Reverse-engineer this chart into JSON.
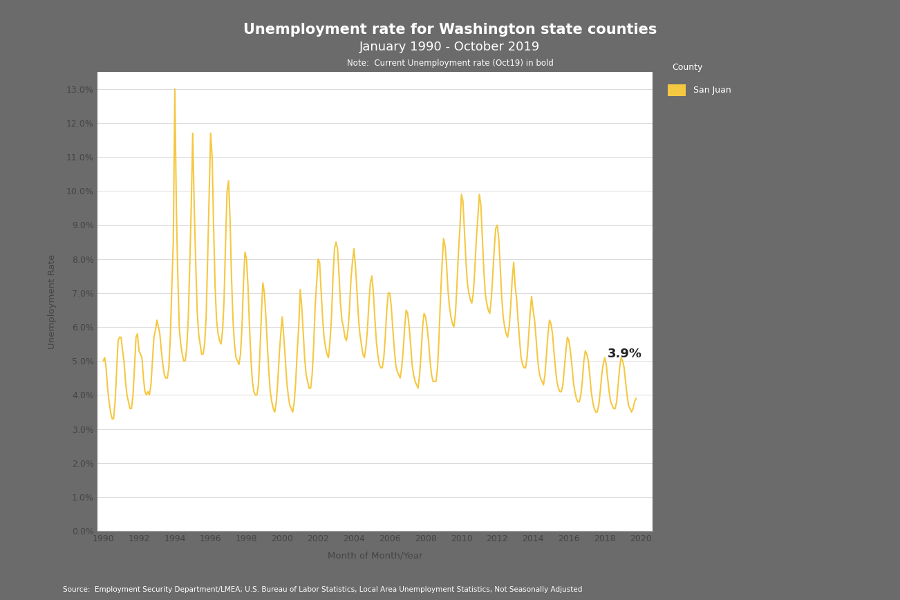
{
  "title_line1": "Unemployment rate for Washington state counties",
  "title_line2": "January 1990 - October 2019",
  "note": "Note:  Current Unemployment rate (Oct19) in bold",
  "xlabel": "Month of Month/Year",
  "ylabel": "Unemployment Rate",
  "source": "Source:  Employment Security Department/LMEA; U.S. Bureau of Labor Statistics, Local Area Unemployment Statistics, Not Seasonally Adjusted",
  "legend_title": "County",
  "legend_label": "San Juan",
  "line_color": "#F5C842",
  "background_outer": "#6b6b6b",
  "background_plot": "#ffffff",
  "annotation_text": "3.9%",
  "data": [
    [
      1990,
      1,
      0.05
    ],
    [
      1990,
      2,
      0.051
    ],
    [
      1990,
      3,
      0.048
    ],
    [
      1990,
      4,
      0.042
    ],
    [
      1990,
      5,
      0.038
    ],
    [
      1990,
      6,
      0.035
    ],
    [
      1990,
      7,
      0.033
    ],
    [
      1990,
      8,
      0.033
    ],
    [
      1990,
      9,
      0.038
    ],
    [
      1990,
      10,
      0.047
    ],
    [
      1990,
      11,
      0.056
    ],
    [
      1990,
      12,
      0.057
    ],
    [
      1991,
      1,
      0.057
    ],
    [
      1991,
      2,
      0.053
    ],
    [
      1991,
      3,
      0.05
    ],
    [
      1991,
      4,
      0.044
    ],
    [
      1991,
      5,
      0.04
    ],
    [
      1991,
      6,
      0.038
    ],
    [
      1991,
      7,
      0.036
    ],
    [
      1991,
      8,
      0.036
    ],
    [
      1991,
      9,
      0.04
    ],
    [
      1991,
      10,
      0.048
    ],
    [
      1991,
      11,
      0.057
    ],
    [
      1991,
      12,
      0.058
    ],
    [
      1992,
      1,
      0.053
    ],
    [
      1992,
      2,
      0.052
    ],
    [
      1992,
      3,
      0.051
    ],
    [
      1992,
      4,
      0.045
    ],
    [
      1992,
      5,
      0.041
    ],
    [
      1992,
      6,
      0.04
    ],
    [
      1992,
      7,
      0.041
    ],
    [
      1992,
      8,
      0.04
    ],
    [
      1992,
      9,
      0.043
    ],
    [
      1992,
      10,
      0.05
    ],
    [
      1992,
      11,
      0.057
    ],
    [
      1992,
      12,
      0.059
    ],
    [
      1993,
      1,
      0.062
    ],
    [
      1993,
      2,
      0.06
    ],
    [
      1993,
      3,
      0.058
    ],
    [
      1993,
      4,
      0.053
    ],
    [
      1993,
      5,
      0.049
    ],
    [
      1993,
      6,
      0.046
    ],
    [
      1993,
      7,
      0.045
    ],
    [
      1993,
      8,
      0.045
    ],
    [
      1993,
      9,
      0.048
    ],
    [
      1993,
      10,
      0.057
    ],
    [
      1993,
      11,
      0.072
    ],
    [
      1993,
      12,
      0.085
    ],
    [
      1994,
      1,
      0.13
    ],
    [
      1994,
      2,
      0.095
    ],
    [
      1994,
      3,
      0.076
    ],
    [
      1994,
      4,
      0.06
    ],
    [
      1994,
      5,
      0.055
    ],
    [
      1994,
      6,
      0.052
    ],
    [
      1994,
      7,
      0.05
    ],
    [
      1994,
      8,
      0.05
    ],
    [
      1994,
      9,
      0.054
    ],
    [
      1994,
      10,
      0.062
    ],
    [
      1994,
      11,
      0.078
    ],
    [
      1994,
      12,
      0.095
    ],
    [
      1995,
      1,
      0.117
    ],
    [
      1995,
      2,
      0.095
    ],
    [
      1995,
      3,
      0.08
    ],
    [
      1995,
      4,
      0.065
    ],
    [
      1995,
      5,
      0.058
    ],
    [
      1995,
      6,
      0.055
    ],
    [
      1995,
      7,
      0.052
    ],
    [
      1995,
      8,
      0.052
    ],
    [
      1995,
      9,
      0.055
    ],
    [
      1995,
      10,
      0.063
    ],
    [
      1995,
      11,
      0.08
    ],
    [
      1995,
      12,
      0.098
    ],
    [
      1996,
      1,
      0.117
    ],
    [
      1996,
      2,
      0.11
    ],
    [
      1996,
      3,
      0.09
    ],
    [
      1996,
      4,
      0.072
    ],
    [
      1996,
      5,
      0.062
    ],
    [
      1996,
      6,
      0.058
    ],
    [
      1996,
      7,
      0.056
    ],
    [
      1996,
      8,
      0.055
    ],
    [
      1996,
      9,
      0.059
    ],
    [
      1996,
      10,
      0.068
    ],
    [
      1996,
      11,
      0.085
    ],
    [
      1996,
      12,
      0.1
    ],
    [
      1997,
      1,
      0.103
    ],
    [
      1997,
      2,
      0.091
    ],
    [
      1997,
      3,
      0.075
    ],
    [
      1997,
      4,
      0.062
    ],
    [
      1997,
      5,
      0.055
    ],
    [
      1997,
      6,
      0.051
    ],
    [
      1997,
      7,
      0.05
    ],
    [
      1997,
      8,
      0.049
    ],
    [
      1997,
      9,
      0.052
    ],
    [
      1997,
      10,
      0.06
    ],
    [
      1997,
      11,
      0.073
    ],
    [
      1997,
      12,
      0.082
    ],
    [
      1998,
      1,
      0.08
    ],
    [
      1998,
      2,
      0.072
    ],
    [
      1998,
      3,
      0.061
    ],
    [
      1998,
      4,
      0.051
    ],
    [
      1998,
      5,
      0.044
    ],
    [
      1998,
      6,
      0.041
    ],
    [
      1998,
      7,
      0.04
    ],
    [
      1998,
      8,
      0.04
    ],
    [
      1998,
      9,
      0.043
    ],
    [
      1998,
      10,
      0.052
    ],
    [
      1998,
      11,
      0.064
    ],
    [
      1998,
      12,
      0.073
    ],
    [
      1999,
      1,
      0.07
    ],
    [
      1999,
      2,
      0.063
    ],
    [
      1999,
      3,
      0.055
    ],
    [
      1999,
      4,
      0.047
    ],
    [
      1999,
      5,
      0.041
    ],
    [
      1999,
      6,
      0.038
    ],
    [
      1999,
      7,
      0.036
    ],
    [
      1999,
      8,
      0.035
    ],
    [
      1999,
      9,
      0.038
    ],
    [
      1999,
      10,
      0.044
    ],
    [
      1999,
      11,
      0.052
    ],
    [
      1999,
      12,
      0.058
    ],
    [
      2000,
      1,
      0.063
    ],
    [
      2000,
      2,
      0.057
    ],
    [
      2000,
      3,
      0.051
    ],
    [
      2000,
      4,
      0.044
    ],
    [
      2000,
      5,
      0.04
    ],
    [
      2000,
      6,
      0.037
    ],
    [
      2000,
      7,
      0.036
    ],
    [
      2000,
      8,
      0.035
    ],
    [
      2000,
      9,
      0.038
    ],
    [
      2000,
      10,
      0.044
    ],
    [
      2000,
      11,
      0.053
    ],
    [
      2000,
      12,
      0.06
    ],
    [
      2001,
      1,
      0.071
    ],
    [
      2001,
      2,
      0.066
    ],
    [
      2001,
      3,
      0.059
    ],
    [
      2001,
      4,
      0.051
    ],
    [
      2001,
      5,
      0.046
    ],
    [
      2001,
      6,
      0.044
    ],
    [
      2001,
      7,
      0.042
    ],
    [
      2001,
      8,
      0.042
    ],
    [
      2001,
      9,
      0.046
    ],
    [
      2001,
      10,
      0.054
    ],
    [
      2001,
      11,
      0.066
    ],
    [
      2001,
      12,
      0.073
    ],
    [
      2002,
      1,
      0.08
    ],
    [
      2002,
      2,
      0.079
    ],
    [
      2002,
      3,
      0.071
    ],
    [
      2002,
      4,
      0.063
    ],
    [
      2002,
      5,
      0.057
    ],
    [
      2002,
      6,
      0.054
    ],
    [
      2002,
      7,
      0.052
    ],
    [
      2002,
      8,
      0.051
    ],
    [
      2002,
      9,
      0.056
    ],
    [
      2002,
      10,
      0.063
    ],
    [
      2002,
      11,
      0.075
    ],
    [
      2002,
      12,
      0.083
    ],
    [
      2003,
      1,
      0.085
    ],
    [
      2003,
      2,
      0.083
    ],
    [
      2003,
      3,
      0.076
    ],
    [
      2003,
      4,
      0.067
    ],
    [
      2003,
      5,
      0.062
    ],
    [
      2003,
      6,
      0.06
    ],
    [
      2003,
      7,
      0.057
    ],
    [
      2003,
      8,
      0.056
    ],
    [
      2003,
      9,
      0.059
    ],
    [
      2003,
      10,
      0.065
    ],
    [
      2003,
      11,
      0.074
    ],
    [
      2003,
      12,
      0.079
    ],
    [
      2004,
      1,
      0.083
    ],
    [
      2004,
      2,
      0.078
    ],
    [
      2004,
      3,
      0.071
    ],
    [
      2004,
      4,
      0.063
    ],
    [
      2004,
      5,
      0.058
    ],
    [
      2004,
      6,
      0.055
    ],
    [
      2004,
      7,
      0.052
    ],
    [
      2004,
      8,
      0.051
    ],
    [
      2004,
      9,
      0.054
    ],
    [
      2004,
      10,
      0.059
    ],
    [
      2004,
      11,
      0.067
    ],
    [
      2004,
      12,
      0.073
    ],
    [
      2005,
      1,
      0.075
    ],
    [
      2005,
      2,
      0.07
    ],
    [
      2005,
      3,
      0.063
    ],
    [
      2005,
      4,
      0.056
    ],
    [
      2005,
      5,
      0.052
    ],
    [
      2005,
      6,
      0.049
    ],
    [
      2005,
      7,
      0.048
    ],
    [
      2005,
      8,
      0.048
    ],
    [
      2005,
      9,
      0.051
    ],
    [
      2005,
      10,
      0.057
    ],
    [
      2005,
      11,
      0.065
    ],
    [
      2005,
      12,
      0.07
    ],
    [
      2006,
      1,
      0.07
    ],
    [
      2006,
      2,
      0.066
    ],
    [
      2006,
      3,
      0.06
    ],
    [
      2006,
      4,
      0.054
    ],
    [
      2006,
      5,
      0.049
    ],
    [
      2006,
      6,
      0.047
    ],
    [
      2006,
      7,
      0.046
    ],
    [
      2006,
      8,
      0.045
    ],
    [
      2006,
      9,
      0.048
    ],
    [
      2006,
      10,
      0.053
    ],
    [
      2006,
      11,
      0.06
    ],
    [
      2006,
      12,
      0.065
    ],
    [
      2007,
      1,
      0.064
    ],
    [
      2007,
      2,
      0.06
    ],
    [
      2007,
      3,
      0.055
    ],
    [
      2007,
      4,
      0.049
    ],
    [
      2007,
      5,
      0.046
    ],
    [
      2007,
      6,
      0.044
    ],
    [
      2007,
      7,
      0.043
    ],
    [
      2007,
      8,
      0.042
    ],
    [
      2007,
      9,
      0.046
    ],
    [
      2007,
      10,
      0.052
    ],
    [
      2007,
      11,
      0.06
    ],
    [
      2007,
      12,
      0.064
    ],
    [
      2008,
      1,
      0.063
    ],
    [
      2008,
      2,
      0.06
    ],
    [
      2008,
      3,
      0.056
    ],
    [
      2008,
      4,
      0.05
    ],
    [
      2008,
      5,
      0.046
    ],
    [
      2008,
      6,
      0.044
    ],
    [
      2008,
      7,
      0.044
    ],
    [
      2008,
      8,
      0.044
    ],
    [
      2008,
      9,
      0.048
    ],
    [
      2008,
      10,
      0.057
    ],
    [
      2008,
      11,
      0.069
    ],
    [
      2008,
      12,
      0.078
    ],
    [
      2009,
      1,
      0.086
    ],
    [
      2009,
      2,
      0.084
    ],
    [
      2009,
      3,
      0.079
    ],
    [
      2009,
      4,
      0.071
    ],
    [
      2009,
      5,
      0.066
    ],
    [
      2009,
      6,
      0.063
    ],
    [
      2009,
      7,
      0.061
    ],
    [
      2009,
      8,
      0.06
    ],
    [
      2009,
      9,
      0.064
    ],
    [
      2009,
      10,
      0.072
    ],
    [
      2009,
      11,
      0.082
    ],
    [
      2009,
      12,
      0.089
    ],
    [
      2010,
      1,
      0.099
    ],
    [
      2010,
      2,
      0.097
    ],
    [
      2010,
      3,
      0.089
    ],
    [
      2010,
      4,
      0.08
    ],
    [
      2010,
      5,
      0.073
    ],
    [
      2010,
      6,
      0.07
    ],
    [
      2010,
      7,
      0.068
    ],
    [
      2010,
      8,
      0.067
    ],
    [
      2010,
      9,
      0.07
    ],
    [
      2010,
      10,
      0.077
    ],
    [
      2010,
      11,
      0.086
    ],
    [
      2010,
      12,
      0.092
    ],
    [
      2011,
      1,
      0.099
    ],
    [
      2011,
      2,
      0.096
    ],
    [
      2011,
      3,
      0.087
    ],
    [
      2011,
      4,
      0.077
    ],
    [
      2011,
      5,
      0.07
    ],
    [
      2011,
      6,
      0.067
    ],
    [
      2011,
      7,
      0.065
    ],
    [
      2011,
      8,
      0.064
    ],
    [
      2011,
      9,
      0.068
    ],
    [
      2011,
      10,
      0.075
    ],
    [
      2011,
      11,
      0.083
    ],
    [
      2011,
      12,
      0.089
    ],
    [
      2012,
      1,
      0.09
    ],
    [
      2012,
      2,
      0.086
    ],
    [
      2012,
      3,
      0.078
    ],
    [
      2012,
      4,
      0.069
    ],
    [
      2012,
      5,
      0.063
    ],
    [
      2012,
      6,
      0.06
    ],
    [
      2012,
      7,
      0.058
    ],
    [
      2012,
      8,
      0.057
    ],
    [
      2012,
      9,
      0.06
    ],
    [
      2012,
      10,
      0.066
    ],
    [
      2012,
      11,
      0.074
    ],
    [
      2012,
      12,
      0.079
    ],
    [
      2013,
      1,
      0.072
    ],
    [
      2013,
      2,
      0.068
    ],
    [
      2013,
      3,
      0.062
    ],
    [
      2013,
      4,
      0.056
    ],
    [
      2013,
      5,
      0.051
    ],
    [
      2013,
      6,
      0.049
    ],
    [
      2013,
      7,
      0.048
    ],
    [
      2013,
      8,
      0.048
    ],
    [
      2013,
      9,
      0.051
    ],
    [
      2013,
      10,
      0.057
    ],
    [
      2013,
      11,
      0.064
    ],
    [
      2013,
      12,
      0.069
    ],
    [
      2014,
      1,
      0.065
    ],
    [
      2014,
      2,
      0.062
    ],
    [
      2014,
      3,
      0.057
    ],
    [
      2014,
      4,
      0.051
    ],
    [
      2014,
      5,
      0.047
    ],
    [
      2014,
      6,
      0.045
    ],
    [
      2014,
      7,
      0.044
    ],
    [
      2014,
      8,
      0.043
    ],
    [
      2014,
      9,
      0.046
    ],
    [
      2014,
      10,
      0.052
    ],
    [
      2014,
      11,
      0.058
    ],
    [
      2014,
      12,
      0.062
    ],
    [
      2015,
      1,
      0.061
    ],
    [
      2015,
      2,
      0.058
    ],
    [
      2015,
      3,
      0.053
    ],
    [
      2015,
      4,
      0.048
    ],
    [
      2015,
      5,
      0.044
    ],
    [
      2015,
      6,
      0.042
    ],
    [
      2015,
      7,
      0.041
    ],
    [
      2015,
      8,
      0.041
    ],
    [
      2015,
      9,
      0.043
    ],
    [
      2015,
      10,
      0.048
    ],
    [
      2015,
      11,
      0.053
    ],
    [
      2015,
      12,
      0.057
    ],
    [
      2016,
      1,
      0.056
    ],
    [
      2016,
      2,
      0.053
    ],
    [
      2016,
      3,
      0.049
    ],
    [
      2016,
      4,
      0.044
    ],
    [
      2016,
      5,
      0.041
    ],
    [
      2016,
      6,
      0.039
    ],
    [
      2016,
      7,
      0.038
    ],
    [
      2016,
      8,
      0.038
    ],
    [
      2016,
      9,
      0.04
    ],
    [
      2016,
      10,
      0.044
    ],
    [
      2016,
      11,
      0.05
    ],
    [
      2016,
      12,
      0.053
    ],
    [
      2017,
      1,
      0.052
    ],
    [
      2017,
      2,
      0.05
    ],
    [
      2017,
      3,
      0.046
    ],
    [
      2017,
      4,
      0.041
    ],
    [
      2017,
      5,
      0.038
    ],
    [
      2017,
      6,
      0.036
    ],
    [
      2017,
      7,
      0.035
    ],
    [
      2017,
      8,
      0.035
    ],
    [
      2017,
      9,
      0.037
    ],
    [
      2017,
      10,
      0.041
    ],
    [
      2017,
      11,
      0.046
    ],
    [
      2017,
      12,
      0.049
    ],
    [
      2018,
      1,
      0.051
    ],
    [
      2018,
      2,
      0.049
    ],
    [
      2018,
      3,
      0.045
    ],
    [
      2018,
      4,
      0.041
    ],
    [
      2018,
      5,
      0.038
    ],
    [
      2018,
      6,
      0.037
    ],
    [
      2018,
      7,
      0.036
    ],
    [
      2018,
      8,
      0.036
    ],
    [
      2018,
      9,
      0.038
    ],
    [
      2018,
      10,
      0.043
    ],
    [
      2018,
      11,
      0.048
    ],
    [
      2018,
      12,
      0.051
    ],
    [
      2019,
      1,
      0.05
    ],
    [
      2019,
      2,
      0.048
    ],
    [
      2019,
      3,
      0.044
    ],
    [
      2019,
      4,
      0.04
    ],
    [
      2019,
      5,
      0.037
    ],
    [
      2019,
      6,
      0.036
    ],
    [
      2019,
      7,
      0.035
    ],
    [
      2019,
      8,
      0.036
    ],
    [
      2019,
      9,
      0.038
    ],
    [
      2019,
      10,
      0.039
    ]
  ]
}
